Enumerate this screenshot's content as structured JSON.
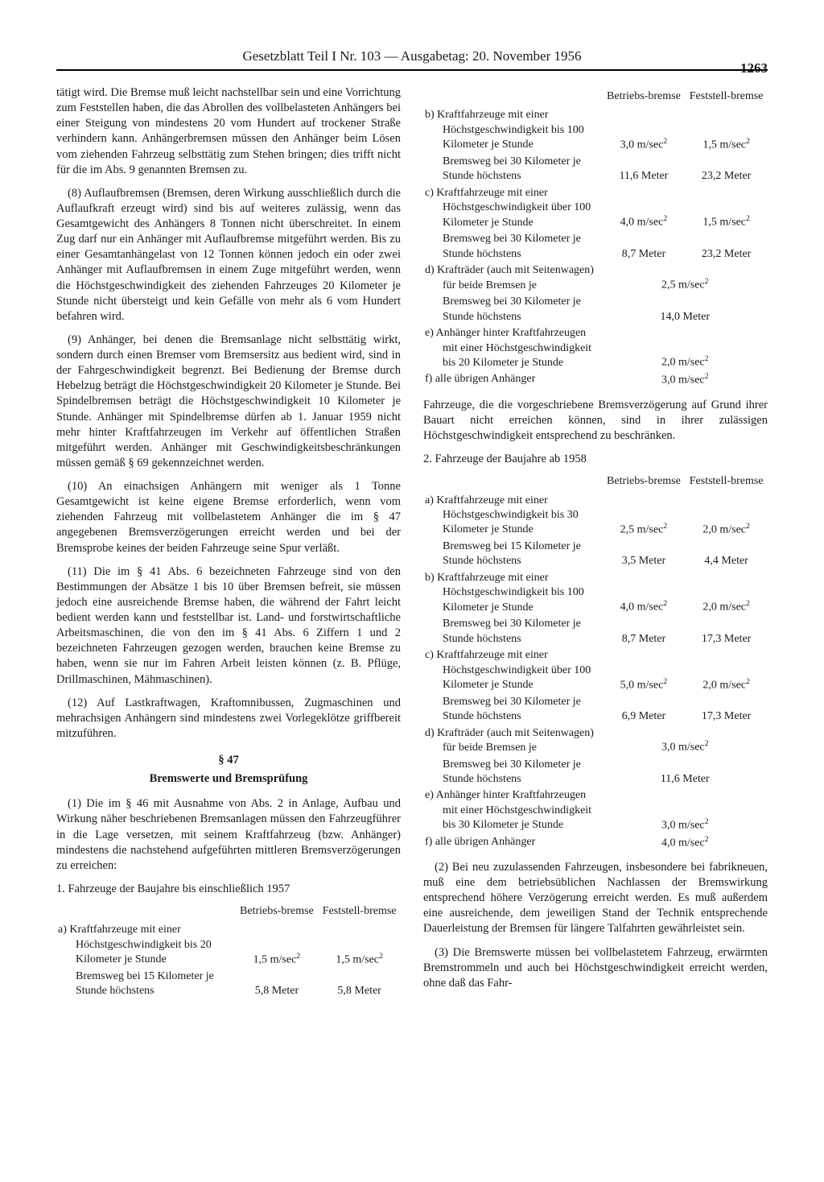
{
  "header": {
    "title": "Gesetzblatt Teil I Nr. 103 — Ausgabetag: 20. November 1956",
    "page_number": "1263"
  },
  "left": {
    "p_cont": "tätigt wird. Die Bremse muß leicht nachstellbar sein und eine Vorrichtung zum Feststellen haben, die das Abrollen des vollbelasteten Anhängers bei einer Steigung von mindestens 20 vom Hundert auf trockener Straße verhindern kann. Anhängerbremsen müssen den Anhänger beim Lösen vom ziehenden Fahrzeug selbsttätig zum Stehen bringen; dies trifft nicht für die im Abs. 9 genannten Bremsen zu.",
    "p8": "(8) Auflaufbremsen (Bremsen, deren Wirkung ausschließlich durch die Auflaufkraft erzeugt wird) sind bis auf weiteres zulässig, wenn das Gesamtgewicht des Anhängers 8 Tonnen nicht überschreitet. In einem Zug darf nur ein Anhänger mit Auflaufbremse mitgeführt werden. Bis zu einer Gesamtanhängelast von 12 Tonnen können jedoch ein oder zwei Anhänger mit Auflaufbremsen in einem Zuge mitgeführt werden, wenn die Höchstgeschwindigkeit des ziehenden Fahrzeuges 20 Kilometer je Stunde nicht übersteigt und kein Gefälle von mehr als 6 vom Hundert befahren wird.",
    "p9": "(9) Anhänger, bei denen die Bremsanlage nicht selbsttätig wirkt, sondern durch einen Bremser vom Bremsersitz aus bedient wird, sind in der Fahrgeschwindigkeit begrenzt. Bei Bedienung der Bremse durch Hebelzug beträgt die Höchstgeschwindigkeit 20 Kilometer je Stunde. Bei Spindelbremsen beträgt die Höchstgeschwindigkeit 10 Kilometer je Stunde. Anhänger mit Spindelbremse dürfen ab 1. Januar 1959 nicht mehr hinter Kraftfahrzeugen im Verkehr auf öffentlichen Straßen mitgeführt werden. Anhänger mit Geschwindigkeitsbeschränkungen müssen gemäß § 69 gekennzeichnet werden.",
    "p10": "(10) An einachsigen Anhängern mit weniger als 1 Tonne Gesamtgewicht ist keine eigene Bremse erforderlich, wenn vom ziehenden Fahrzeug mit vollbelastetem Anhänger die im § 47 angegebenen Bremsverzögerungen erreicht werden und bei der Bremsprobe keines der beiden Fahrzeuge seine Spur verläßt.",
    "p11": "(11) Die im § 41 Abs. 6 bezeichneten Fahrzeuge sind von den Bestimmungen der Absätze 1 bis 10 über Bremsen befreit, sie müssen jedoch eine ausreichende Bremse haben, die während der Fahrt leicht bedient werden kann und feststellbar ist. Land- und forstwirtschaftliche Arbeitsmaschinen, die von den im § 41 Abs. 6 Ziffern 1 und 2 bezeichneten Fahrzeugen gezogen werden, brauchen keine Bremse zu haben, wenn sie nur im Fahren Arbeit leisten können (z. B. Pflüge, Drillmaschinen, Mähmaschinen).",
    "p12": "(12) Auf Lastkraftwagen, Kraftomnibussen, Zugmaschinen und mehrachsigen Anhängern sind mindestens zwei Vorlegeklötze griffbereit mitzuführen.",
    "sect_num": "§ 47",
    "sect_title": "Bremswerte und Bremsprüfung",
    "p1": "(1) Die im § 46 mit Ausnahme von Abs. 2 in Anlage, Aufbau und Wirkung näher beschriebenen Bremsanlagen müssen den Fahrzeugführer in die Lage versetzen, mit seinem Kraftfahrzeug (bzw. Anhänger) mindestens die nachstehend aufgeführten mittleren Bremsverzögerungen zu erreichen:",
    "list1": "1. Fahrzeuge der Baujahre bis einschließlich 1957",
    "th1": "Betriebs-bremse",
    "th2": "Feststell-bremse",
    "t1": {
      "a_l1": "a) Kraftfahrzeuge mit einer Höchstgeschwindigkeit bis 20 Kilometer je Stunde",
      "a_v1": "1,5 m/sec²",
      "a_v2": "1,5 m/sec²",
      "a_l2": "Bremsweg bei 15 Kilometer je Stunde höchstens",
      "a_w1": "5,8 Meter",
      "a_w2": "5,8 Meter"
    }
  },
  "right": {
    "th1": "Betriebs-bremse",
    "th2": "Feststell-bremse",
    "t1": {
      "b_l1": "b) Kraftfahrzeuge mit einer Höchstgeschwindigkeit bis 100 Kilometer je Stunde",
      "b_v1": "3,0 m/sec²",
      "b_v2": "1,5 m/sec²",
      "b_l2": "Bremsweg bei 30 Kilometer je Stunde höchstens",
      "b_w1": "11,6 Meter",
      "b_w2": "23,2 Meter",
      "c_l1": "c) Kraftfahrzeuge mit einer Höchstgeschwindigkeit über 100 Kilometer je Stunde",
      "c_v1": "4,0 m/sec²",
      "c_v2": "1,5 m/sec²",
      "c_l2": "Bremsweg bei 30 Kilometer je Stunde höchstens",
      "c_w1": "8,7 Meter",
      "c_w2": "23,2 Meter",
      "d_l1": "d) Krafträder (auch mit Seitenwagen) für beide Bremsen je",
      "d_v1": "2,5 m/sec²",
      "d_l2": "Bremsweg bei 30 Kilometer je Stunde höchstens",
      "d_w1": "14,0 Meter",
      "e_l1": "e) Anhänger hinter Kraftfahrzeugen mit einer Höchstgeschwindigkeit bis 20 Kilometer je Stunde",
      "e_v1": "2,0 m/sec²",
      "f_l1": "f) alle übrigen Anhänger",
      "f_v1": "3,0 m/sec²"
    },
    "note1": "Fahrzeuge, die die vorgeschriebene Bremsverzögerung auf Grund ihrer Bauart nicht erreichen können, sind in ihrer zulässigen Höchstgeschwindigkeit entsprechend zu beschränken.",
    "list2": "2. Fahrzeuge der Baujahre ab 1958",
    "t2": {
      "a_l1": "a) Kraftfahrzeuge mit einer Höchstgeschwindigkeit bis 30 Kilometer je Stunde",
      "a_v1": "2,5 m/sec²",
      "a_v2": "2,0 m/sec²",
      "a_l2": "Bremsweg bei 15 Kilometer je Stunde höchstens",
      "a_w1": "3,5 Meter",
      "a_w2": "4,4 Meter",
      "b_l1": "b) Kraftfahrzeuge mit einer Höchstgeschwindigkeit bis 100 Kilometer je Stunde",
      "b_v1": "4,0 m/sec²",
      "b_v2": "2,0 m/sec²",
      "b_l2": "Bremsweg bei 30 Kilometer je Stunde höchstens",
      "b_w1": "8,7 Meter",
      "b_w2": "17,3 Meter",
      "c_l1": "c) Kraftfahrzeuge mit einer Höchstgeschwindigkeit über 100 Kilometer je Stunde",
      "c_v1": "5,0 m/sec²",
      "c_v2": "2,0 m/sec²",
      "c_l2": "Bremsweg bei 30 Kilometer je Stunde höchstens",
      "c_w1": "6,9 Meter",
      "c_w2": "17,3 Meter",
      "d_l1": "d) Krafträder (auch mit Seitenwagen) für beide Bremsen je",
      "d_v1": "3,0 m/sec²",
      "d_l2": "Bremsweg bei 30 Kilometer je Stunde höchstens",
      "d_w1": "11,6 Meter",
      "e_l1": "e) Anhänger hinter Kraftfahrzeugen mit einer Höchstgeschwindigkeit bis 30 Kilometer je Stunde",
      "e_v1": "3,0 m/sec²",
      "f_l1": "f) alle übrigen Anhänger",
      "f_v1": "4,0 m/sec²"
    },
    "p2": "(2) Bei neu zuzulassenden Fahrzeugen, insbesondere bei fabrikneuen, muß eine dem betriebsüblichen Nachlassen der Bremswirkung entsprechend höhere Verzögerung erreicht werden. Es muß außerdem eine ausreichende, dem jeweiligen Stand der Technik entsprechende Dauerleistung der Bremsen für längere Talfahrten gewährleistet sein.",
    "p3": "(3) Die Bremswerte müssen bei vollbelastetem Fahrzeug, erwärmten Bremstrommeln und auch bei Höchstgeschwindigkeit erreicht werden, ohne daß das Fahr-"
  }
}
